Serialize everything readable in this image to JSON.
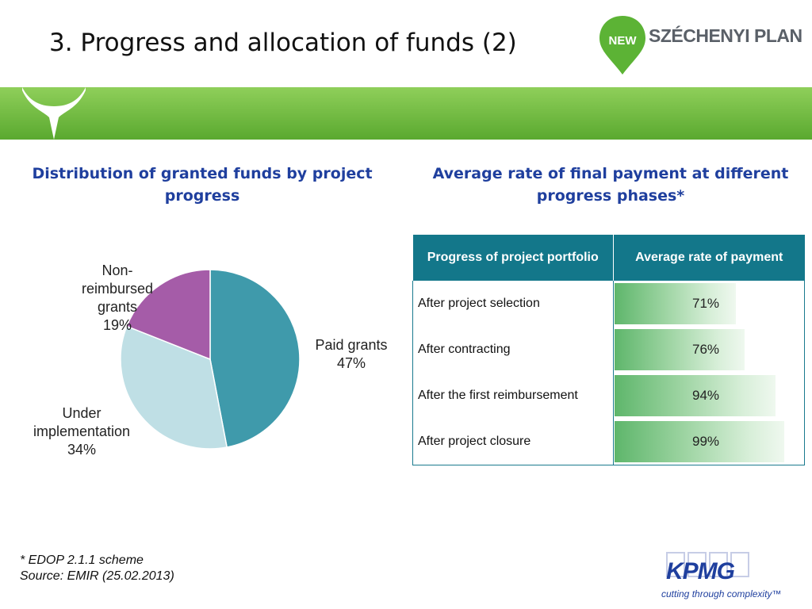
{
  "header": {
    "title": "3. Progress and allocation of funds (2)",
    "logo": {
      "badge": "NEW",
      "text": "SZÉCHENYI PLAN"
    }
  },
  "left_section": {
    "title": "Distribution of granted funds by project progress"
  },
  "right_section": {
    "title": "Average rate of final payment at different progress phases*"
  },
  "chart_data": [
    {
      "type": "pie",
      "title": "Distribution of granted funds by project progress",
      "slices": [
        {
          "label": "Paid grants",
          "value": 47,
          "display": "47%",
          "color": "#3f9aab"
        },
        {
          "label": "Under implementation",
          "value": 34,
          "display": "34%",
          "color": "#bfdfe5"
        },
        {
          "label": "Non-reimbursed grants",
          "value": 19,
          "display": "19%",
          "color": "#a55ca8"
        }
      ]
    },
    {
      "type": "table",
      "title": "Average rate of final payment at different progress phases*",
      "columns": [
        "Progress of project portfolio",
        "Average rate of payment"
      ],
      "rows": [
        {
          "phase": "After project selection",
          "value": 71,
          "display": "71%"
        },
        {
          "phase": "After contracting",
          "value": 76,
          "display": "76%"
        },
        {
          "phase": "After the first reimbursement",
          "value": 94,
          "display": "94%"
        },
        {
          "phase": "After project closure",
          "value": 99,
          "display": "99%"
        }
      ]
    }
  ],
  "footnote": {
    "line1": "* EDOP 2.1.1 scheme",
    "line2": "Source: EMIR (25.02.2013)"
  },
  "footer_logo": {
    "name": "KPMG",
    "tagline": "cutting through complexity™"
  },
  "colors": {
    "title_blue": "#1f3f9e",
    "band_green": "#6cbb3c",
    "table_header": "#13778a"
  }
}
